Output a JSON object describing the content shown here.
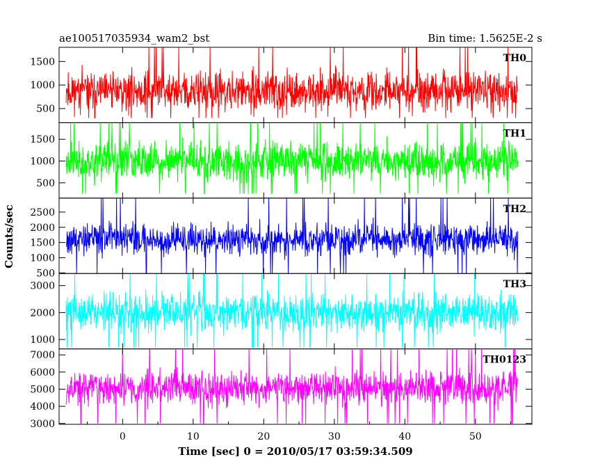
{
  "header": {
    "left_title": "ae100517035934_wam2_bst",
    "right_title": "Bin time: 1.5625E-2 s"
  },
  "axes": {
    "xlabel": "Time [sec] 0 = 2010/05/17 03:59:34.509",
    "ylabel": "Counts/sec"
  },
  "chart_data": {
    "type": "line",
    "title": "ae100517035934_wam2_bst",
    "subtitle": "Bin time: 1.5625E-2 s",
    "xlabel": "Time [sec] 0 = 2010/05/17 03:59:34.509",
    "ylabel": "Counts/sec",
    "xlim": [
      -9,
      58
    ],
    "x_ticks": [
      0,
      10,
      20,
      30,
      40,
      50
    ],
    "data_x_range": [
      -8,
      56
    ],
    "grid": false,
    "legend": "none",
    "panels": [
      {
        "name": "TH0",
        "color": "#ff0000",
        "ylim": [
          200,
          1800
        ],
        "y_ticks": [
          500,
          1000,
          1500
        ],
        "mean": 870,
        "spread": 550,
        "min": 300,
        "max": 1800,
        "seed": 11
      },
      {
        "name": "TH1",
        "color": "#00ff00",
        "ylim": [
          150,
          1880
        ],
        "y_ticks": [
          500,
          1000,
          1500
        ],
        "mean": 1000,
        "spread": 580,
        "min": 250,
        "max": 1880,
        "seed": 23
      },
      {
        "name": "TH2",
        "color": "#0000ff",
        "ylim": [
          480,
          2960
        ],
        "y_ticks": [
          500,
          1000,
          1500,
          2000,
          2500
        ],
        "mean": 1600,
        "spread": 700,
        "min": 480,
        "max": 2960,
        "seed": 37
      },
      {
        "name": "TH3",
        "color": "#00ffff",
        "ylim": [
          650,
          3450
        ],
        "y_ticks": [
          1000,
          2000,
          3000
        ],
        "mean": 2000,
        "spread": 900,
        "min": 700,
        "max": 3450,
        "seed": 41
      },
      {
        "name": "TH0123",
        "color": "#ff00ff",
        "ylim": [
          2950,
          7350
        ],
        "y_ticks": [
          3000,
          4000,
          5000,
          6000,
          7000
        ],
        "mean": 5100,
        "spread": 1300,
        "min": 3000,
        "max": 7350,
        "seed": 53
      }
    ]
  }
}
